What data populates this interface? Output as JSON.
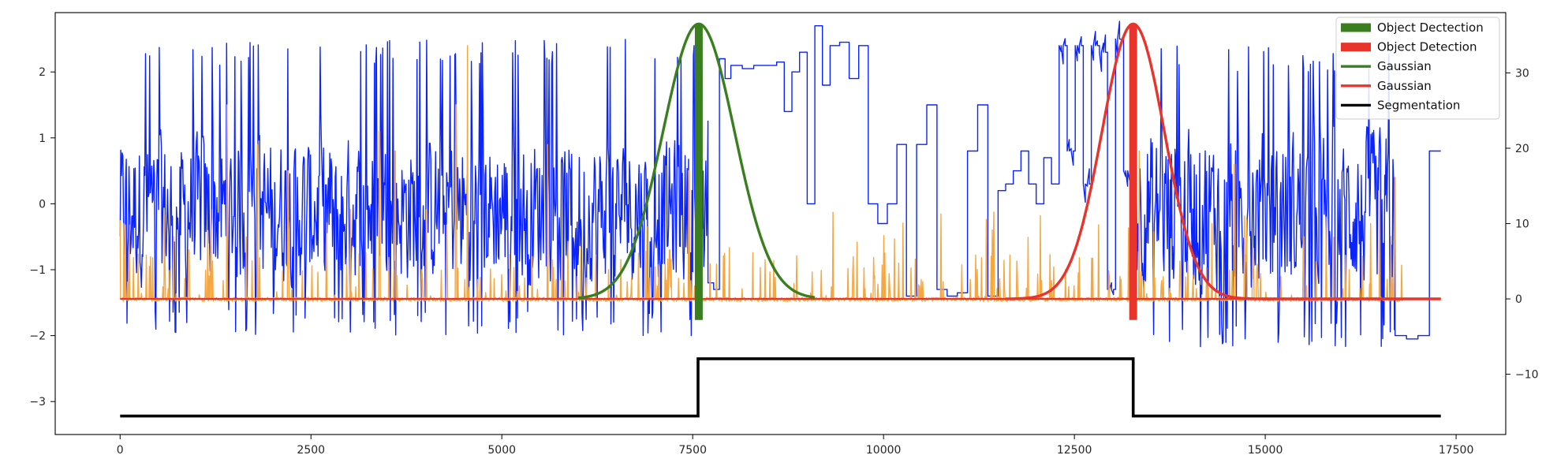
{
  "chart_data": {
    "type": "line",
    "title": "",
    "xlabel": "",
    "ylabel": "",
    "y2label": "",
    "xlim": [
      -850,
      18150
    ],
    "ylim": [
      -3.5,
      2.9
    ],
    "y2lim": [
      -18,
      38
    ],
    "x_ticks": [
      0,
      2500,
      5000,
      7500,
      10000,
      12500,
      15000,
      17500
    ],
    "x_tick_labels": [
      "0",
      "2500",
      "5000",
      "7500",
      "10000",
      "12500",
      "15000",
      "17500"
    ],
    "y_ticks": [
      -3,
      -2,
      -1,
      0,
      1,
      2
    ],
    "y_tick_labels": [
      "−3",
      "−2",
      "−1",
      "0",
      "1",
      "2"
    ],
    "y2_ticks": [
      -10,
      0,
      10,
      20,
      30
    ],
    "y2_tick_labels": [
      "−10",
      "0",
      "10",
      "20",
      "30"
    ],
    "grid": false,
    "legend_position": "top-right",
    "signals": {
      "blue_signal": {
        "color": "#0b24fb",
        "axis": "left",
        "x_range": [
          0,
          17300
        ],
        "segments": [
          {
            "x0": 0,
            "x1": 7500,
            "style": "noisy",
            "mean": -0.1,
            "amp": 1.0,
            "min": -2.0,
            "max": 2.5
          },
          {
            "x0": 7500,
            "x1": 7700,
            "style": "noisy",
            "mean": 0.0,
            "amp": 1.4,
            "min": -2.0,
            "max": 2.6
          },
          {
            "x0": 7700,
            "x1": 8000,
            "style": "steps",
            "values": [
              -1.2,
              -1.3,
              2.2,
              1.9
            ]
          },
          {
            "x0": 8000,
            "x1": 8600,
            "style": "steps",
            "values": [
              2.1,
              2.05,
              2.1,
              2.1
            ]
          },
          {
            "x0": 8600,
            "x1": 9300,
            "style": "steps",
            "values": [
              2.15,
              1.4,
              2.0,
              2.3,
              0.0,
              2.7,
              1.8
            ]
          },
          {
            "x0": 9300,
            "x1": 10300,
            "style": "steps",
            "values": [
              2.4,
              2.45,
              1.9,
              2.4,
              0.0,
              -0.3,
              0.0,
              0.9
            ]
          },
          {
            "x0": 10300,
            "x1": 11500,
            "style": "steps",
            "values": [
              -1.4,
              0.9,
              1.5,
              -1.3,
              -1.4,
              -1.35,
              0.8,
              1.5,
              -1.4
            ]
          },
          {
            "x0": 11500,
            "x1": 12300,
            "style": "steps",
            "values": [
              0.2,
              0.3,
              0.5,
              0.8,
              0.3,
              0.0,
              0.7,
              0.3
            ]
          },
          {
            "x0": 12300,
            "x1": 13250,
            "style": "mixed",
            "values": [
              2.4,
              0.8,
              2.4,
              0.3,
              2.4,
              2.3,
              -1.3,
              2.5,
              0.5
            ]
          },
          {
            "x0": 13250,
            "x1": 16700,
            "style": "noisy",
            "mean": -0.1,
            "amp": 1.1,
            "min": -2.2,
            "max": 2.4
          },
          {
            "x0": 16700,
            "x1": 17300,
            "style": "steps",
            "values": [
              -2.0,
              -2.05,
              -2.0,
              0.8
            ]
          }
        ]
      },
      "orange_signal": {
        "color": "#f5a742",
        "axis": "left",
        "baseline": -1.45,
        "x_range": [
          0,
          16800
        ],
        "peaks_x": [
          50,
          400,
          700,
          900,
          1400,
          1800,
          2200,
          3400,
          3600,
          4400,
          4550,
          5600,
          7200,
          7450,
          13350,
          14300,
          14600,
          15500,
          16500,
          16700
        ],
        "peaks_y": [
          -0.3,
          -0.8,
          -0.5,
          -0.7,
          1.5,
          0.9,
          0.5,
          1.1,
          0.8,
          1.5,
          2.4,
          0.9,
          -0.7,
          0.5,
          0.8,
          -0.3,
          0.6,
          -0.5,
          0.2,
          0.4
        ]
      },
      "green_gaussian": {
        "color": "#3a7f1f",
        "axis": "right",
        "center": 7580,
        "sigma": 470,
        "peak": 36.5,
        "baseline": 0,
        "x_range": [
          6000,
          9100
        ]
      },
      "red_gaussian": {
        "color": "#e8342a",
        "axis": "right",
        "center": 13270,
        "sigma": 410,
        "peak": 36.5,
        "baseline": 0,
        "x_range": [
          11600,
          17300
        ]
      },
      "green_detection": {
        "color": "#3a7f1f",
        "axis": "right",
        "x": 7580,
        "y_min": -2.8,
        "y_max": 36.5
      },
      "red_detection": {
        "color": "#e8342a",
        "axis": "right",
        "x": 13270,
        "y_min": -2.8,
        "y_max": 36.5
      },
      "red_baseline": {
        "color": "#e8342a",
        "axis": "right",
        "x_range": [
          0,
          17300
        ],
        "value": 0
      },
      "segmentation": {
        "color": "#000000",
        "axis": "left",
        "x": [
          0,
          7570,
          7570,
          13270,
          13270,
          17300
        ],
        "y": [
          -3.22,
          -3.22,
          -2.35,
          -2.35,
          -3.22,
          -3.22
        ]
      }
    },
    "legend": [
      {
        "label": "Object Dectection",
        "color": "#3a7f1f",
        "style": "thick"
      },
      {
        "label": "Object Detection",
        "color": "#e8342a",
        "style": "thick"
      },
      {
        "label": "Gaussian",
        "color": "#3a7f1f",
        "style": "line"
      },
      {
        "label": "Gaussian",
        "color": "#e8342a",
        "style": "line"
      },
      {
        "label": "Segmentation",
        "color": "#000000",
        "style": "line"
      }
    ]
  }
}
